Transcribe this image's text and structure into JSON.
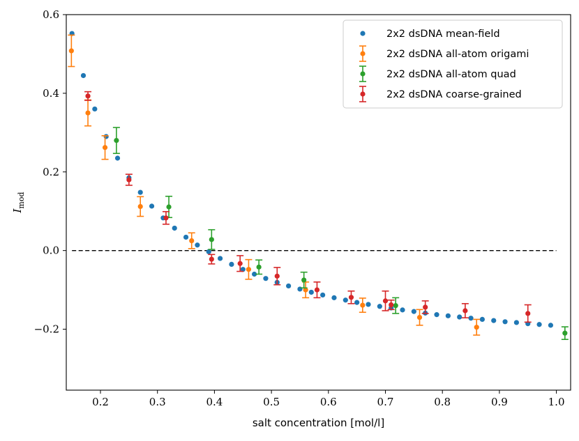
{
  "chart_data": {
    "type": "scatter",
    "xlabel": "salt concentration [mol/l]",
    "ylabel": "I",
    "ylabel_sub": "mod",
    "xlim": [
      0.14,
      1.025
    ],
    "ylim": [
      -0.355,
      0.6
    ],
    "xticks": [
      0.2,
      0.3,
      0.4,
      0.5,
      0.6,
      0.7,
      0.8,
      0.9,
      1.0
    ],
    "xtick_labels": [
      "0.2",
      "0.3",
      "0.4",
      "0.5",
      "0.6",
      "0.7",
      "0.8",
      "0.9",
      "1.0"
    ],
    "yticks": [
      -0.2,
      0.0,
      0.2,
      0.4,
      0.6
    ],
    "ytick_labels": [
      "−0.2",
      "0.0",
      "0.2",
      "0.4",
      "0.6"
    ],
    "reference_line": {
      "y": 0.0,
      "x_from": 0.15,
      "x_to": 1.0,
      "style": "dashed"
    },
    "grid": false,
    "legend_position": "top-right",
    "series": [
      {
        "name": "2x2 dsDNA mean-field",
        "color": "#1f77b4",
        "kind": "points",
        "x": [
          0.15,
          0.17,
          0.19,
          0.21,
          0.23,
          0.25,
          0.27,
          0.29,
          0.31,
          0.33,
          0.35,
          0.37,
          0.39,
          0.41,
          0.43,
          0.45,
          0.47,
          0.49,
          0.51,
          0.53,
          0.55,
          0.57,
          0.59,
          0.61,
          0.63,
          0.65,
          0.67,
          0.69,
          0.71,
          0.73,
          0.75,
          0.77,
          0.79,
          0.81,
          0.83,
          0.85,
          0.87,
          0.89,
          0.91,
          0.93,
          0.95,
          0.97,
          0.99
        ],
        "y": [
          0.552,
          0.445,
          0.36,
          0.29,
          0.235,
          0.185,
          0.148,
          0.113,
          0.083,
          0.057,
          0.034,
          0.014,
          -0.003,
          -0.02,
          -0.035,
          -0.048,
          -0.06,
          -0.071,
          -0.081,
          -0.09,
          -0.098,
          -0.106,
          -0.113,
          -0.12,
          -0.126,
          -0.132,
          -0.137,
          -0.142,
          -0.146,
          -0.151,
          -0.155,
          -0.159,
          -0.163,
          -0.166,
          -0.169,
          -0.172,
          -0.175,
          -0.178,
          -0.181,
          -0.183,
          -0.186,
          -0.188,
          -0.19
        ]
      },
      {
        "name": "2x2 dsDNA all-atom origami",
        "color": "#ff7f0e",
        "kind": "errorbar",
        "x": [
          0.149,
          0.178,
          0.208,
          0.27,
          0.36,
          0.46,
          0.56,
          0.66,
          0.76,
          0.86
        ],
        "y": [
          0.508,
          0.35,
          0.262,
          0.112,
          0.025,
          -0.048,
          -0.1,
          -0.139,
          -0.17,
          -0.195
        ],
        "err": [
          0.04,
          0.033,
          0.03,
          0.025,
          0.02,
          0.025,
          0.02,
          0.018,
          0.02,
          0.02
        ]
      },
      {
        "name": "2x2 dsDNA all-atom quad",
        "color": "#2ca02c",
        "kind": "errorbar",
        "x": [
          0.228,
          0.32,
          0.395,
          0.478,
          0.557,
          0.718,
          1.015
        ],
        "y": [
          0.28,
          0.111,
          0.028,
          -0.042,
          -0.075,
          -0.14,
          -0.21
        ],
        "err": [
          0.033,
          0.027,
          0.025,
          0.018,
          0.02,
          0.02,
          0.016
        ]
      },
      {
        "name": "2x2 dsDNA coarse-grained",
        "color": "#d62728",
        "kind": "errorbar",
        "x": [
          0.178,
          0.25,
          0.315,
          0.395,
          0.445,
          0.51,
          0.58,
          0.64,
          0.7,
          0.71,
          0.77,
          0.84,
          0.95
        ],
        "y": [
          0.393,
          0.18,
          0.083,
          -0.022,
          -0.033,
          -0.065,
          -0.1,
          -0.119,
          -0.128,
          -0.138,
          -0.144,
          -0.153,
          -0.16
        ],
        "err": [
          0.011,
          0.014,
          0.016,
          0.012,
          0.02,
          0.022,
          0.02,
          0.016,
          0.025,
          0.012,
          0.016,
          0.018,
          0.022
        ]
      }
    ]
  }
}
